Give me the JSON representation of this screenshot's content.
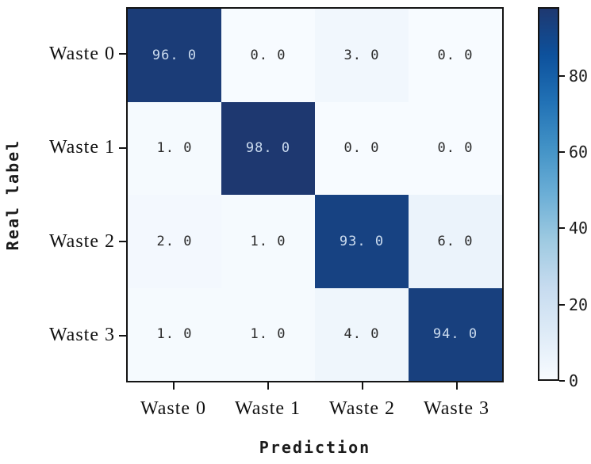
{
  "chart_data": {
    "type": "heatmap",
    "xlabel": "Prediction",
    "ylabel": "Real label",
    "x_categories": [
      "Waste 0",
      "Waste 1",
      "Waste 2",
      "Waste 3"
    ],
    "y_categories": [
      "Waste 0",
      "Waste 1",
      "Waste 2",
      "Waste 3"
    ],
    "matrix": [
      [
        96.0,
        0.0,
        3.0,
        0.0
      ],
      [
        1.0,
        98.0,
        0.0,
        0.0
      ],
      [
        2.0,
        1.0,
        93.0,
        6.0
      ],
      [
        1.0,
        1.0,
        4.0,
        94.0
      ]
    ],
    "cell_labels": [
      [
        "96. 0",
        "0. 0",
        "3. 0",
        "0. 0"
      ],
      [
        "1. 0",
        "98. 0",
        "0. 0",
        "0. 0"
      ],
      [
        "2. 0",
        "1. 0",
        "93. 0",
        "6. 0"
      ],
      [
        "1. 0",
        "1. 0",
        "4. 0",
        "94. 0"
      ]
    ],
    "vmin": 0,
    "vmax": 98,
    "colormap": "Blues",
    "colorbar_ticks": [
      0,
      20,
      40,
      60,
      80
    ],
    "colorbar_tick_labels": [
      "0",
      "20",
      "40",
      "60",
      "80"
    ],
    "colorbar_position": "right",
    "grid": false,
    "legend": false
  },
  "colors": {
    "background": "#ffffff",
    "axis_border": "#141414",
    "cell_text_dark": "#2b2b2b",
    "cell_text_light": "#ccdcef",
    "cmap_stops": [
      {
        "t": 0.0,
        "rgb": [
          247,
          251,
          255
        ]
      },
      {
        "t": 0.125,
        "rgb": [
          222,
          235,
          247
        ]
      },
      {
        "t": 0.25,
        "rgb": [
          198,
          219,
          239
        ]
      },
      {
        "t": 0.375,
        "rgb": [
          158,
          202,
          225
        ]
      },
      {
        "t": 0.5,
        "rgb": [
          107,
          174,
          214
        ]
      },
      {
        "t": 0.625,
        "rgb": [
          66,
          146,
          198
        ]
      },
      {
        "t": 0.75,
        "rgb": [
          33,
          113,
          181
        ]
      },
      {
        "t": 0.875,
        "rgb": [
          13,
          81,
          156
        ]
      },
      {
        "t": 1.0,
        "rgb": [
          30,
          56,
          112
        ]
      }
    ]
  }
}
